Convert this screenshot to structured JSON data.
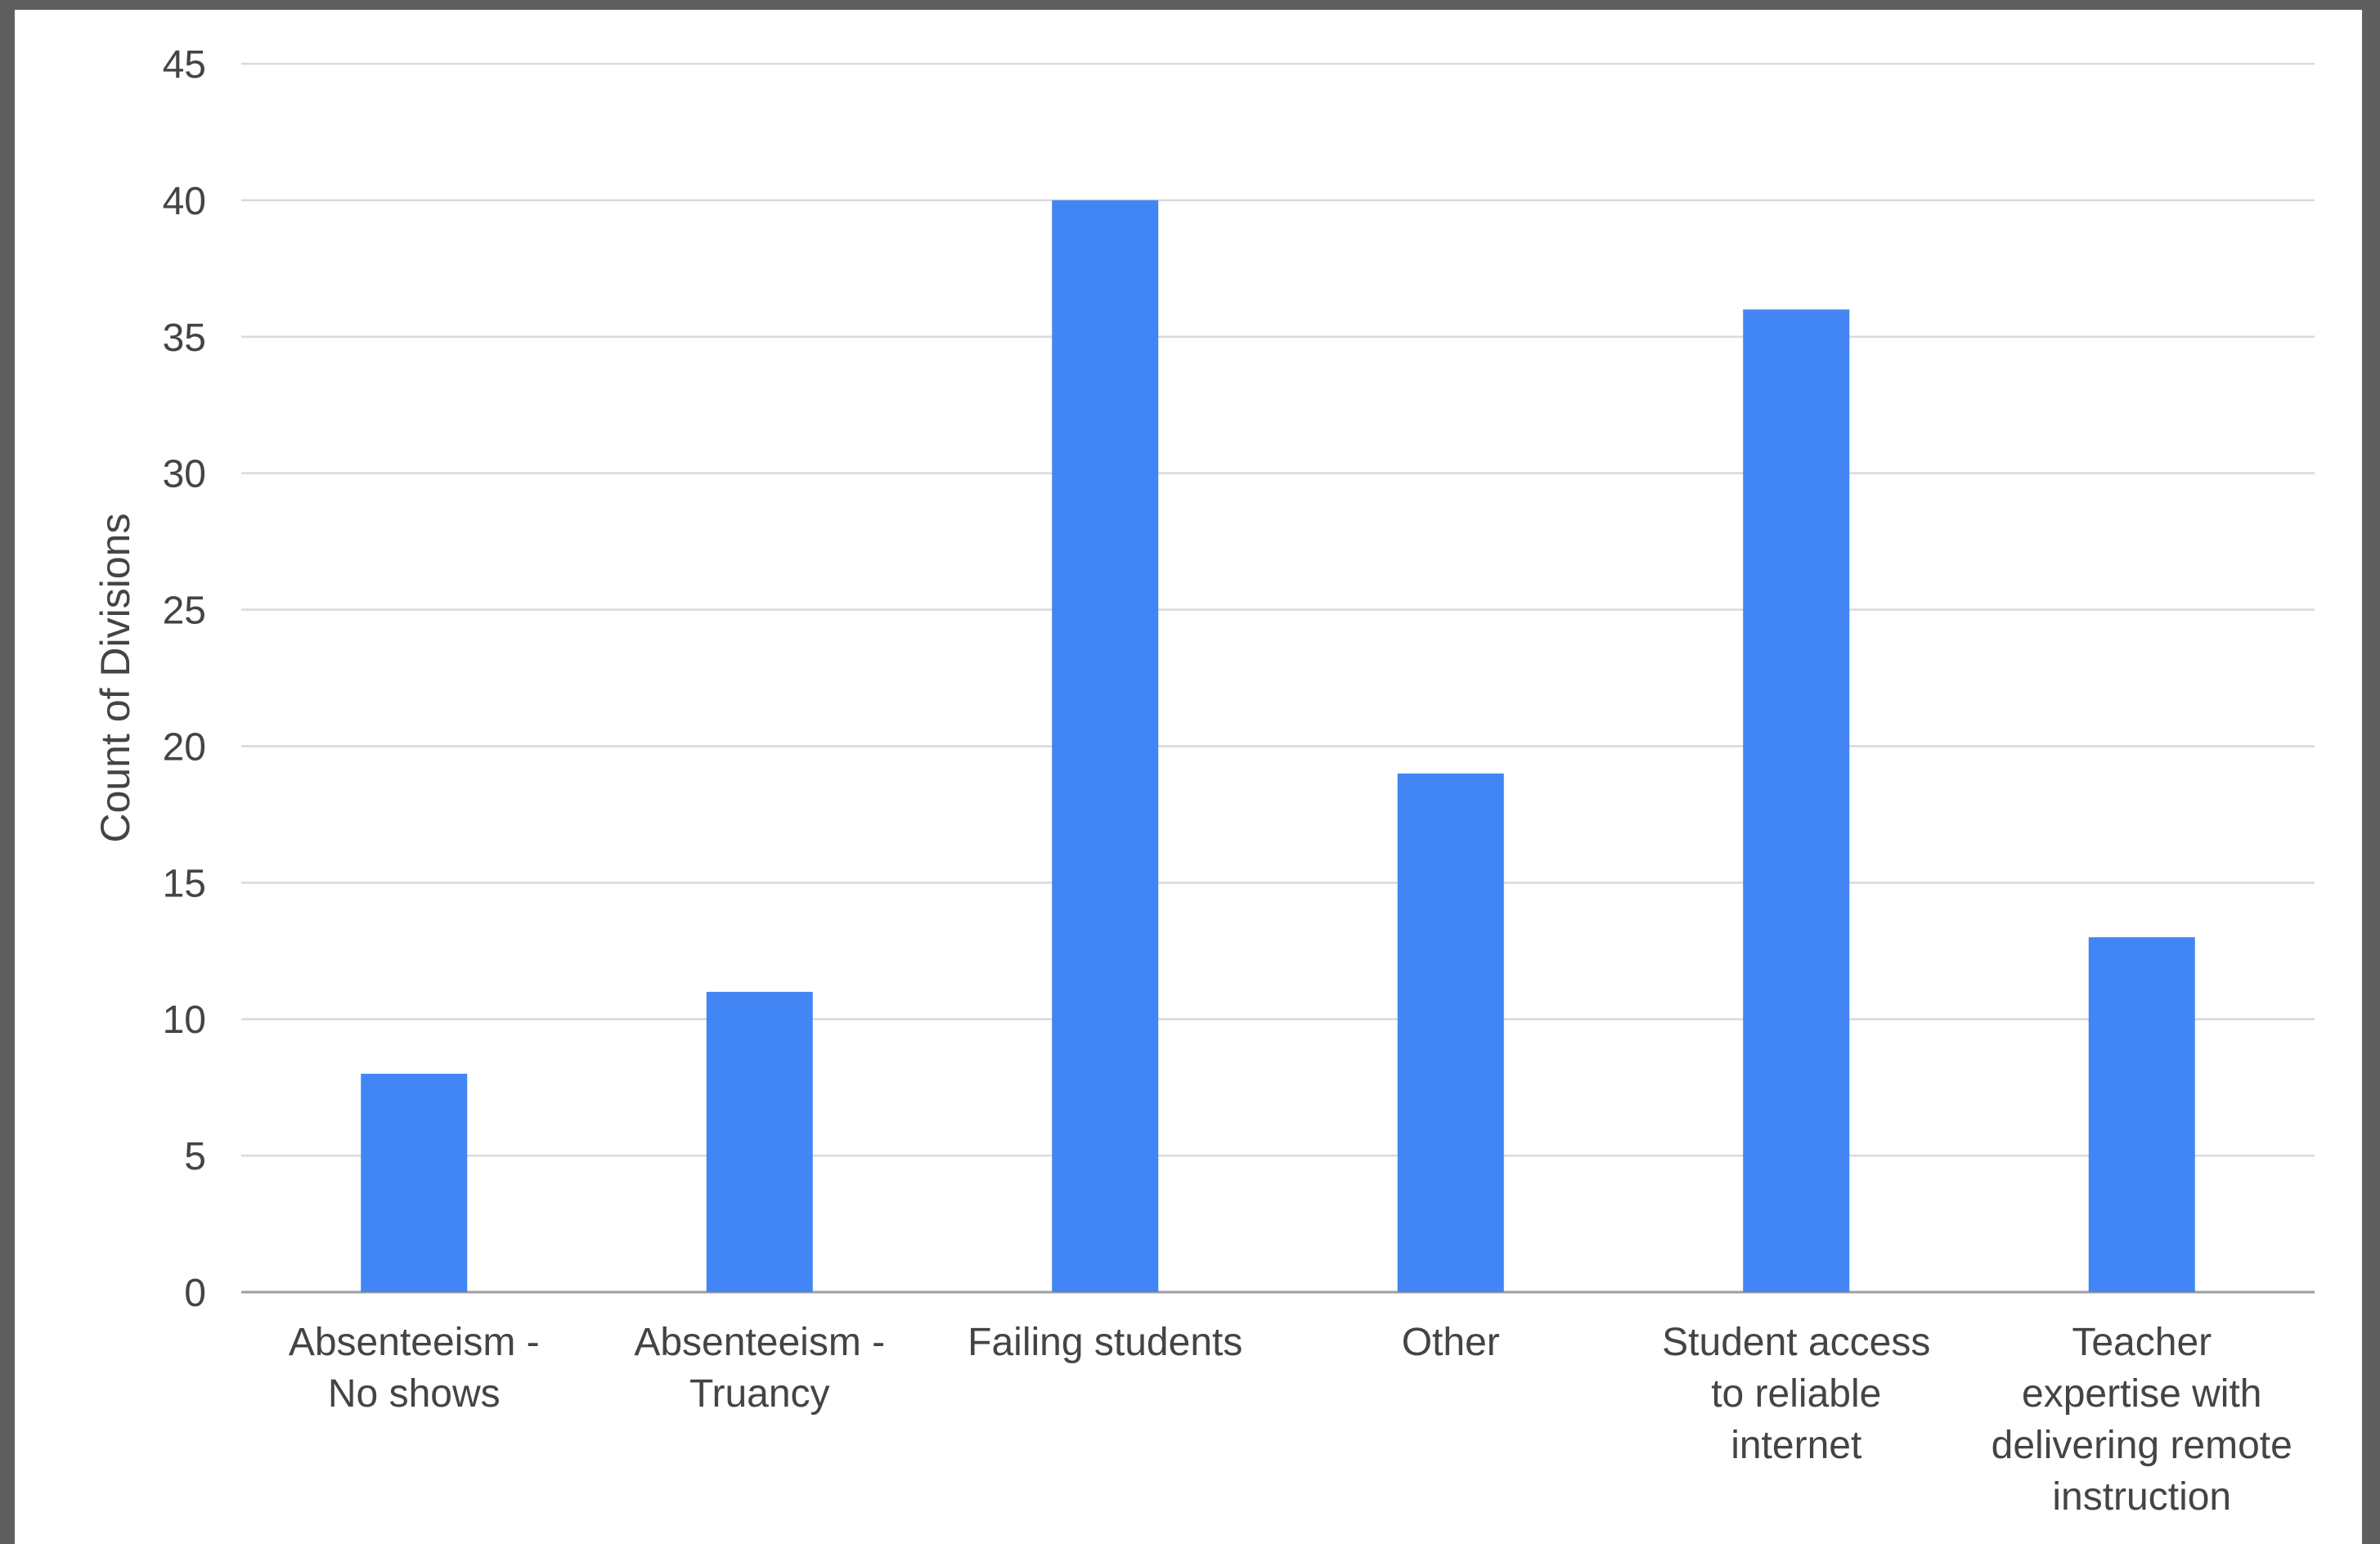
{
  "chart_data": {
    "type": "bar",
    "title": "",
    "xlabel": "",
    "ylabel": "Count of Divisions",
    "ylim": [
      0,
      45
    ],
    "yticks": [
      0,
      5,
      10,
      15,
      20,
      25,
      30,
      35,
      40,
      45
    ],
    "grid": true,
    "legend": "none",
    "bar_color": "#4285f4",
    "categories": [
      "Absenteeism - No shows",
      "Absenteeism - Truancy",
      "Failing students",
      "Other",
      "Student access to reliable internet",
      "Teacher expertise with delivering remote instruction"
    ],
    "category_label_lines": [
      [
        "Absenteeism -",
        "No shows"
      ],
      [
        "Absenteeism -",
        "Truancy"
      ],
      [
        "Failing students"
      ],
      [
        "Other"
      ],
      [
        "Student access",
        "to reliable",
        "internet"
      ],
      [
        "Teacher",
        "expertise with",
        "delivering remote",
        "instruction"
      ]
    ],
    "values": [
      8,
      11,
      40,
      19,
      36,
      13
    ]
  }
}
